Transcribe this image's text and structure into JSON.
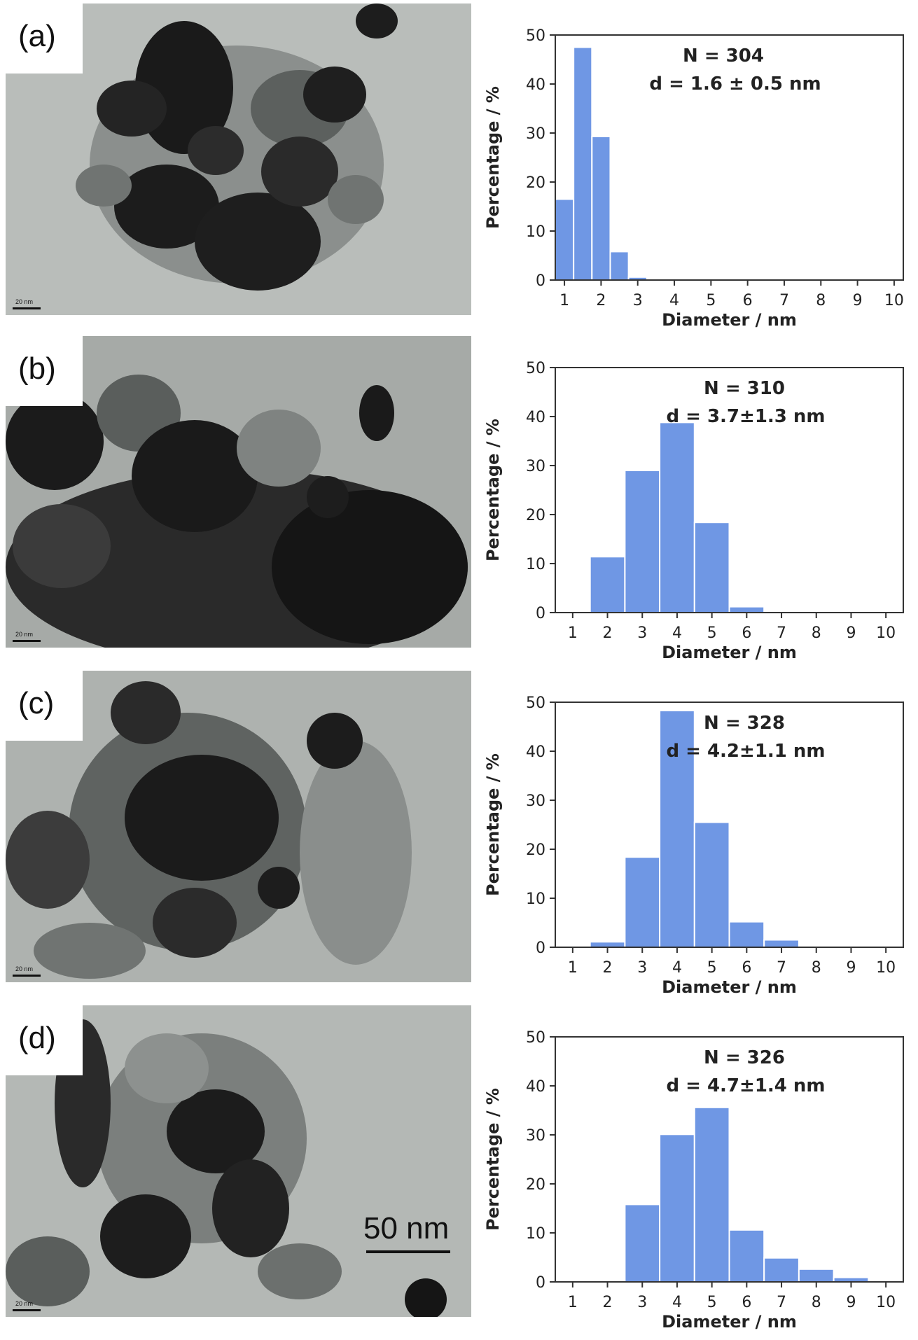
{
  "chart_data": [
    {
      "type": "bar",
      "panel_label": "(a)",
      "scale_bar_text": "20 nm",
      "categories": [
        "1",
        "1.5",
        "2",
        "2.5",
        "3"
      ],
      "bars": [
        {
          "x": 1.0,
          "y": 16.5
        },
        {
          "x": 1.5,
          "y": 47.5
        },
        {
          "x": 2.0,
          "y": 29.3
        },
        {
          "x": 2.5,
          "y": 5.8
        },
        {
          "x": 3.0,
          "y": 0.6
        }
      ],
      "bin_width": 0.5,
      "annotation_n": "N = 304",
      "annotation_d": "d = 1.6 ± 0.5 nm",
      "xlabel": "Diameter / nm",
      "ylabel": "Percentage / %",
      "xticks": [
        "1",
        "2",
        "3",
        "4",
        "5",
        "6",
        "7",
        "8",
        "9",
        "10"
      ],
      "yticks": [
        "0",
        "10",
        "20",
        "30",
        "40",
        "50"
      ],
      "xlim": [
        0.75,
        10.25
      ],
      "ylim": [
        0,
        50
      ]
    },
    {
      "type": "bar",
      "panel_label": "(b)",
      "scale_bar_text": "20 nm",
      "bars": [
        {
          "x": 2,
          "y": 11.4
        },
        {
          "x": 3,
          "y": 29.0
        },
        {
          "x": 4,
          "y": 38.8
        },
        {
          "x": 5,
          "y": 18.4
        },
        {
          "x": 6,
          "y": 1.2
        }
      ],
      "bin_width": 1,
      "annotation_n": "N = 310",
      "annotation_d": "d = 3.7±1.3 nm",
      "xlabel": "Diameter / nm",
      "ylabel": "Percentage / %",
      "xticks": [
        "1",
        "2",
        "3",
        "4",
        "5",
        "6",
        "7",
        "8",
        "9",
        "10"
      ],
      "yticks": [
        "0",
        "10",
        "20",
        "30",
        "40",
        "50"
      ],
      "xlim": [
        0.5,
        10.5
      ],
      "ylim": [
        0,
        50
      ]
    },
    {
      "type": "bar",
      "panel_label": "(c)",
      "scale_bar_text": "20 nm",
      "bars": [
        {
          "x": 2,
          "y": 1.1
        },
        {
          "x": 3,
          "y": 18.4
        },
        {
          "x": 4,
          "y": 48.3
        },
        {
          "x": 5,
          "y": 25.5
        },
        {
          "x": 6,
          "y": 5.2
        },
        {
          "x": 7,
          "y": 1.5
        }
      ],
      "bin_width": 1,
      "annotation_n": "N = 328",
      "annotation_d": "d = 4.2±1.1  nm",
      "xlabel": "Diameter / nm",
      "ylabel": "Percentage / %",
      "xticks": [
        "1",
        "2",
        "3",
        "4",
        "5",
        "6",
        "7",
        "8",
        "9",
        "10"
      ],
      "yticks": [
        "0",
        "10",
        "20",
        "30",
        "40",
        "50"
      ],
      "xlim": [
        0.5,
        10.5
      ],
      "ylim": [
        0,
        50
      ]
    },
    {
      "type": "bar",
      "panel_label": "(d)",
      "scale_bar_text": "20 nm",
      "bars": [
        {
          "x": 3,
          "y": 15.8
        },
        {
          "x": 4,
          "y": 30.1
        },
        {
          "x": 5,
          "y": 35.6
        },
        {
          "x": 6,
          "y": 10.6
        },
        {
          "x": 7,
          "y": 4.9
        },
        {
          "x": 8,
          "y": 2.6
        },
        {
          "x": 9,
          "y": 0.9
        }
      ],
      "bin_width": 1,
      "annotation_n": "N = 326",
      "annotation_d": "d = 4.7±1.4 nm",
      "xlabel": "Diameter / nm",
      "ylabel": "Percentage / %",
      "xticks": [
        "1",
        "2",
        "3",
        "4",
        "5",
        "6",
        "7",
        "8",
        "9",
        "10"
      ],
      "yticks": [
        "0",
        "10",
        "20",
        "30",
        "40",
        "50"
      ],
      "xlim": [
        0.5,
        10.5
      ],
      "ylim": [
        0,
        50
      ]
    }
  ],
  "scale_bar_main": "50 nm",
  "colors": {
    "bar_fill": "#6f97e4",
    "bar_edge": "#ffffff",
    "axis": "#333333",
    "tem_background": "#b7bbb8"
  }
}
